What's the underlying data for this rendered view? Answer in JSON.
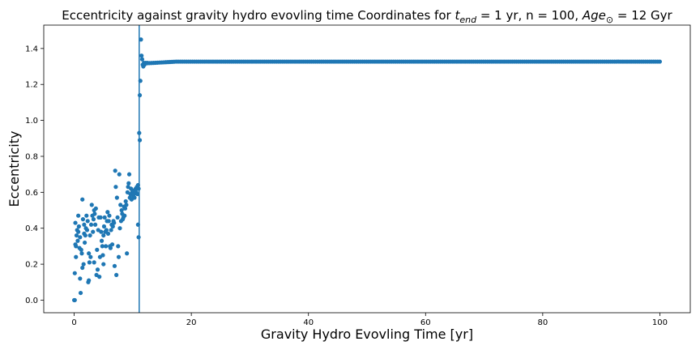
{
  "chart_data": {
    "type": "scatter",
    "title_parts": [
      {
        "text": "Eccentricity against gravity hydro evovling time Coordinates for ",
        "italic": false
      },
      {
        "text": "t",
        "italic": true
      },
      {
        "text": "end",
        "italic": true,
        "sub": true
      },
      {
        "text": " = 1 yr, n = 100, ",
        "italic": false
      },
      {
        "text": "Age",
        "italic": true
      },
      {
        "text": "⊙",
        "italic": false,
        "sub": true
      },
      {
        "text": " = 12 Gyr",
        "italic": false
      }
    ],
    "xlabel": "Gravity Hydro Evovling Time [yr]",
    "ylabel": "Eccentricity",
    "xlim": [
      -5.2,
      105.2
    ],
    "ylim": [
      -0.07,
      1.53
    ],
    "xticks": [
      0,
      20,
      40,
      60,
      80,
      100
    ],
    "yticks": [
      0.0,
      0.2,
      0.4,
      0.6,
      0.8,
      1.0,
      1.2,
      1.4
    ],
    "grid": false,
    "vline_x": 11.1,
    "marker_color": "#1f77b4",
    "line_color": "#1f77b4",
    "series": [
      {
        "early_points": [
          [
            0.0,
            0.0
          ],
          [
            0.1,
            0.0
          ],
          [
            0.1,
            0.15
          ],
          [
            0.2,
            0.31
          ],
          [
            0.2,
            0.43
          ],
          [
            0.3,
            0.3
          ],
          [
            0.3,
            0.24
          ],
          [
            0.4,
            0.36
          ],
          [
            0.5,
            0.39
          ],
          [
            0.6,
            0.33
          ],
          [
            0.7,
            0.38
          ],
          [
            0.7,
            0.47
          ],
          [
            0.8,
            0.41
          ],
          [
            0.9,
            0.29
          ],
          [
            1.0,
            0.35
          ],
          [
            1.0,
            0.12
          ],
          [
            1.1,
            0.04
          ],
          [
            1.2,
            0.28
          ],
          [
            1.3,
            0.26
          ],
          [
            1.4,
            0.18
          ],
          [
            1.4,
            0.56
          ],
          [
            1.5,
            0.45
          ],
          [
            1.6,
            0.2
          ],
          [
            1.7,
            0.37
          ],
          [
            1.7,
            0.42
          ],
          [
            1.8,
            0.32
          ],
          [
            1.9,
            0.36
          ],
          [
            2.0,
            0.4
          ],
          [
            2.1,
            0.47
          ],
          [
            2.2,
            0.39
          ],
          [
            2.3,
            0.44
          ],
          [
            2.4,
            0.1
          ],
          [
            2.5,
            0.26
          ],
          [
            2.5,
            0.11
          ],
          [
            2.6,
            0.21
          ],
          [
            2.7,
            0.36
          ],
          [
            2.8,
            0.24
          ],
          [
            2.9,
            0.42
          ],
          [
            3.0,
            0.53
          ],
          [
            3.1,
            0.47
          ],
          [
            3.2,
            0.38
          ],
          [
            3.3,
            0.45
          ],
          [
            3.4,
            0.5
          ],
          [
            3.4,
            0.21
          ],
          [
            3.5,
            0.48
          ],
          [
            3.6,
            0.42
          ],
          [
            3.7,
            0.51
          ],
          [
            3.8,
            0.14
          ],
          [
            3.9,
            0.28
          ],
          [
            4.0,
            0.17
          ],
          [
            4.1,
            0.39
          ],
          [
            4.2,
            0.46
          ],
          [
            4.3,
            0.13
          ],
          [
            4.4,
            0.24
          ],
          [
            4.5,
            0.46
          ],
          [
            4.6,
            0.38
          ],
          [
            4.7,
            0.33
          ],
          [
            4.8,
            0.3
          ],
          [
            4.9,
            0.25
          ],
          [
            5.0,
            0.36
          ],
          [
            5.0,
            0.2
          ],
          [
            5.1,
            0.41
          ],
          [
            5.2,
            0.46
          ],
          [
            5.3,
            0.38
          ],
          [
            5.4,
            0.3
          ],
          [
            5.5,
            0.39
          ],
          [
            5.6,
            0.44
          ],
          [
            5.7,
            0.49
          ],
          [
            5.8,
            0.37
          ],
          [
            5.9,
            0.44
          ],
          [
            6.0,
            0.47
          ],
          [
            6.1,
            0.3
          ],
          [
            6.2,
            0.29
          ],
          [
            6.3,
            0.39
          ],
          [
            6.4,
            0.42
          ],
          [
            6.5,
            0.31
          ],
          [
            6.6,
            0.41
          ],
          [
            6.7,
            0.44
          ],
          [
            6.8,
            0.43
          ],
          [
            6.9,
            0.19
          ],
          [
            7.0,
            0.72
          ],
          [
            7.1,
            0.63
          ],
          [
            7.2,
            0.14
          ],
          [
            7.3,
            0.57
          ],
          [
            7.4,
            0.46
          ],
          [
            7.5,
            0.3
          ],
          [
            7.6,
            0.24
          ],
          [
            7.7,
            0.7
          ],
          [
            7.8,
            0.4
          ],
          [
            7.9,
            0.53
          ],
          [
            8.0,
            0.44
          ],
          [
            8.1,
            0.5
          ],
          [
            8.2,
            0.48
          ],
          [
            8.3,
            0.45
          ],
          [
            8.4,
            0.46
          ],
          [
            8.5,
            0.52
          ],
          [
            8.6,
            0.47
          ],
          [
            8.7,
            0.51
          ],
          [
            8.8,
            0.55
          ],
          [
            8.9,
            0.53
          ],
          [
            9.0,
            0.26
          ],
          [
            9.1,
            0.6
          ],
          [
            9.2,
            0.63
          ],
          [
            9.3,
            0.65
          ],
          [
            9.4,
            0.7
          ],
          [
            9.5,
            0.57
          ],
          [
            9.6,
            0.59
          ],
          [
            9.7,
            0.62
          ],
          [
            9.8,
            0.56
          ],
          [
            9.9,
            0.6
          ],
          [
            10.0,
            0.61
          ],
          [
            10.1,
            0.58
          ],
          [
            10.2,
            0.59
          ],
          [
            10.3,
            0.57
          ],
          [
            10.4,
            0.61
          ],
          [
            10.5,
            0.62
          ],
          [
            10.6,
            0.6
          ],
          [
            10.7,
            0.63
          ],
          [
            10.8,
            0.59
          ],
          [
            10.9,
            0.64
          ],
          [
            11.0,
            0.62
          ]
        ],
        "transition_points": [
          [
            10.9,
            0.42
          ],
          [
            11.0,
            0.35
          ],
          [
            11.1,
            0.93
          ],
          [
            11.2,
            0.89
          ],
          [
            11.2,
            1.14
          ],
          [
            11.3,
            1.22
          ],
          [
            11.4,
            1.45
          ],
          [
            11.5,
            1.36
          ],
          [
            11.6,
            1.34
          ],
          [
            11.7,
            1.31
          ],
          [
            11.8,
            1.3
          ],
          [
            11.9,
            1.32
          ],
          [
            12.0,
            1.31
          ],
          [
            12.2,
            1.32
          ],
          [
            12.5,
            1.32
          ]
        ],
        "plateau": {
          "x_start": 12.5,
          "x_end": 100.0,
          "step": 0.35,
          "y_start": 1.318,
          "y_end": 1.327
        }
      }
    ]
  }
}
